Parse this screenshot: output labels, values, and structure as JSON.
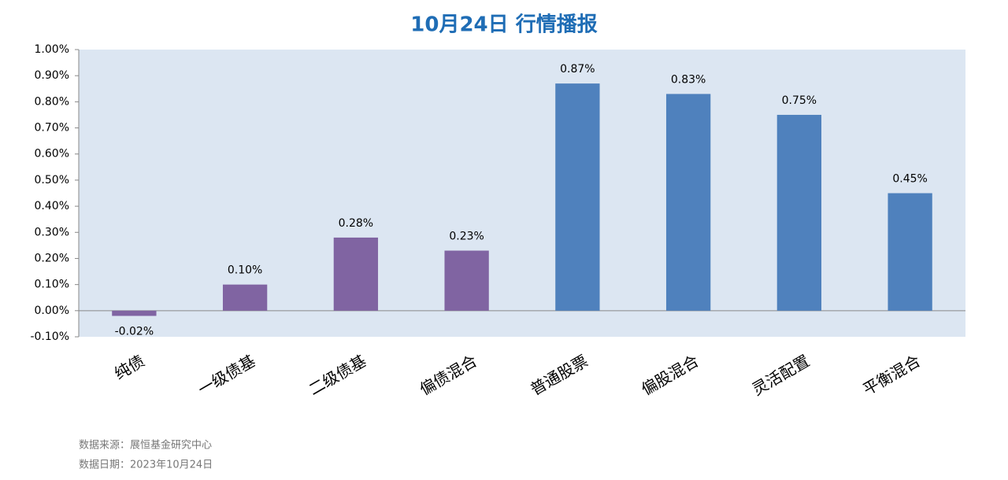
{
  "chart_data": {
    "type": "bar",
    "title": "10月24日  行情播报",
    "categories": [
      "纯债",
      "一级债基",
      "二级债基",
      "偏债混合",
      "普通股票",
      "偏股混合",
      "灵活配置",
      "平衡混合"
    ],
    "values": [
      -0.02,
      0.1,
      0.28,
      0.23,
      0.87,
      0.83,
      0.75,
      0.45
    ],
    "value_labels": [
      "-0.02%",
      "0.10%",
      "0.28%",
      "0.23%",
      "0.87%",
      "0.83%",
      "0.75%",
      "0.45%"
    ],
    "colors": [
      "#8064a2",
      "#8064a2",
      "#8064a2",
      "#8064a2",
      "#4f81bd",
      "#4f81bd",
      "#4f81bd",
      "#4f81bd"
    ],
    "ylim": [
      -0.1,
      1.0
    ],
    "yticks": [
      {
        "value": -0.1,
        "label": "-0.10%"
      },
      {
        "value": 0,
        "label": "0.00%"
      },
      {
        "value": 0.1,
        "label": "0.10%"
      },
      {
        "value": 0.2,
        "label": "0.20%"
      },
      {
        "value": 0.3,
        "label": "0.30%"
      },
      {
        "value": 0.4,
        "label": "0.40%"
      },
      {
        "value": 0.5,
        "label": "0.50%"
      },
      {
        "value": 0.6,
        "label": "0.60%"
      },
      {
        "value": 0.7,
        "label": "0.70%"
      },
      {
        "value": 0.8,
        "label": "0.80%"
      },
      {
        "value": 0.9,
        "label": "0.90%"
      },
      {
        "value": 1.0,
        "label": "1.00%"
      }
    ],
    "grid": false,
    "notes": [
      "数据来源：展恒基金研究中心",
      "数据日期：2023年10月24日"
    ]
  }
}
